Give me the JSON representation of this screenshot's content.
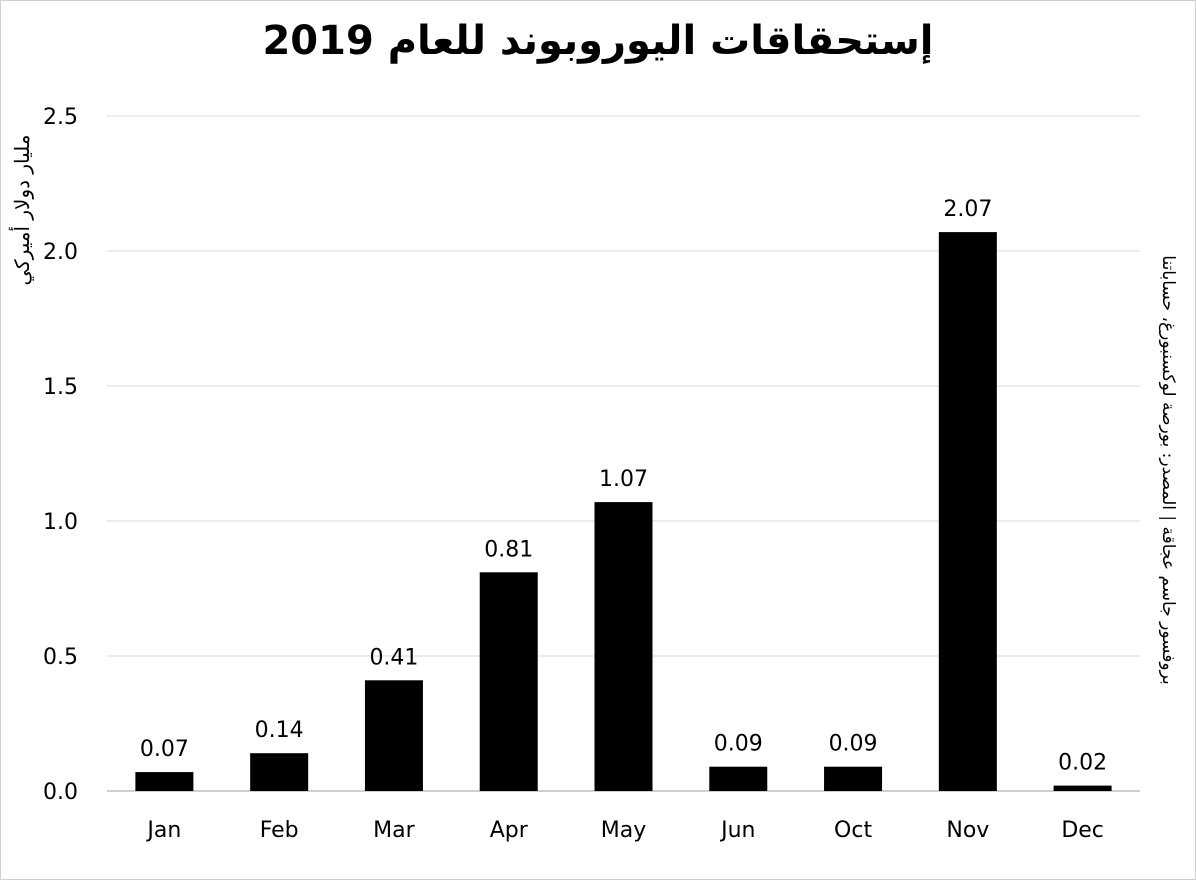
{
  "chart_data": {
    "type": "bar",
    "title": "إستحقاقات اليوروبوند للعام 2019",
    "ylabel": "مليار دولار أميركي",
    "source": "بروفسور جاسم عجاقة | المصدر: بورصة لوكسنبورغ، حساباتنا",
    "categories": [
      "Jan",
      "Feb",
      "Mar",
      "Apr",
      "May",
      "Jun",
      "Oct",
      "Nov",
      "Dec"
    ],
    "values": [
      0.07,
      0.14,
      0.41,
      0.81,
      1.07,
      0.09,
      0.09,
      2.07,
      0.02
    ],
    "value_labels": [
      "0.07",
      "0.14",
      "0.41",
      "0.81",
      "1.07",
      "0.09",
      "0.09",
      "2.07",
      "0.02"
    ],
    "ylim": [
      0,
      2.5
    ],
    "yticks": [
      0.0,
      0.5,
      1.0,
      1.5,
      2.0,
      2.5
    ],
    "ytick_labels": [
      "0.0",
      "0.5",
      "1.0",
      "1.5",
      "2.0",
      "2.5"
    ],
    "grid": true,
    "legend": "none",
    "bar_color": "#000000",
    "grid_color": "#d9d9d9"
  }
}
